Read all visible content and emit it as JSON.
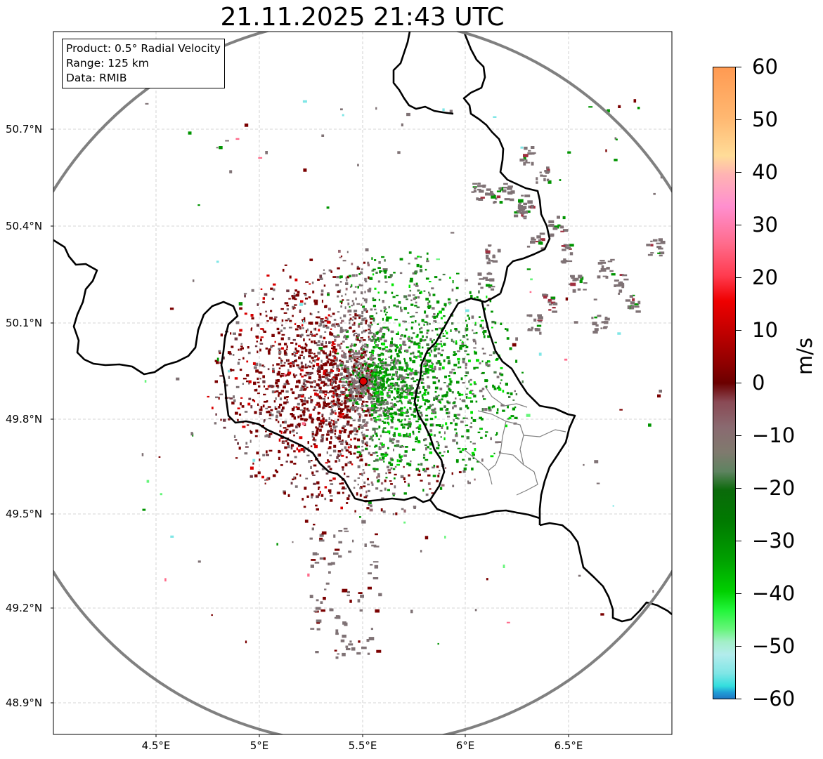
{
  "title": "21.11.2025 21:43 UTC",
  "info": {
    "product": "Product: 0.5° Radial Velocity",
    "range": "Range: 125 km",
    "source": "Data: RMIB"
  },
  "axes": {
    "lat_labels": [
      "50.7°N",
      "50.4°N",
      "50.1°N",
      "49.8°N",
      "49.5°N",
      "49.2°N",
      "48.9°N"
    ],
    "lon_labels": [
      "4.5°E",
      "5°E",
      "5.5°E",
      "6°E",
      "6.5°E"
    ]
  },
  "colorbar": {
    "unit": "m/s",
    "tick_labels": [
      "60",
      "50",
      "40",
      "30",
      "20",
      "10",
      "0",
      "−10",
      "−20",
      "−30",
      "−40",
      "−50",
      "−60"
    ],
    "min": -60,
    "max": 60
  },
  "colors": {
    "inbound_strong": "#00e600",
    "inbound": "#009400",
    "near_zero": "#7f7275",
    "outbound": "#7a0000",
    "outbound_bright": "#d90000",
    "range_ring": "#808080",
    "radar_site": "#e00000"
  }
}
